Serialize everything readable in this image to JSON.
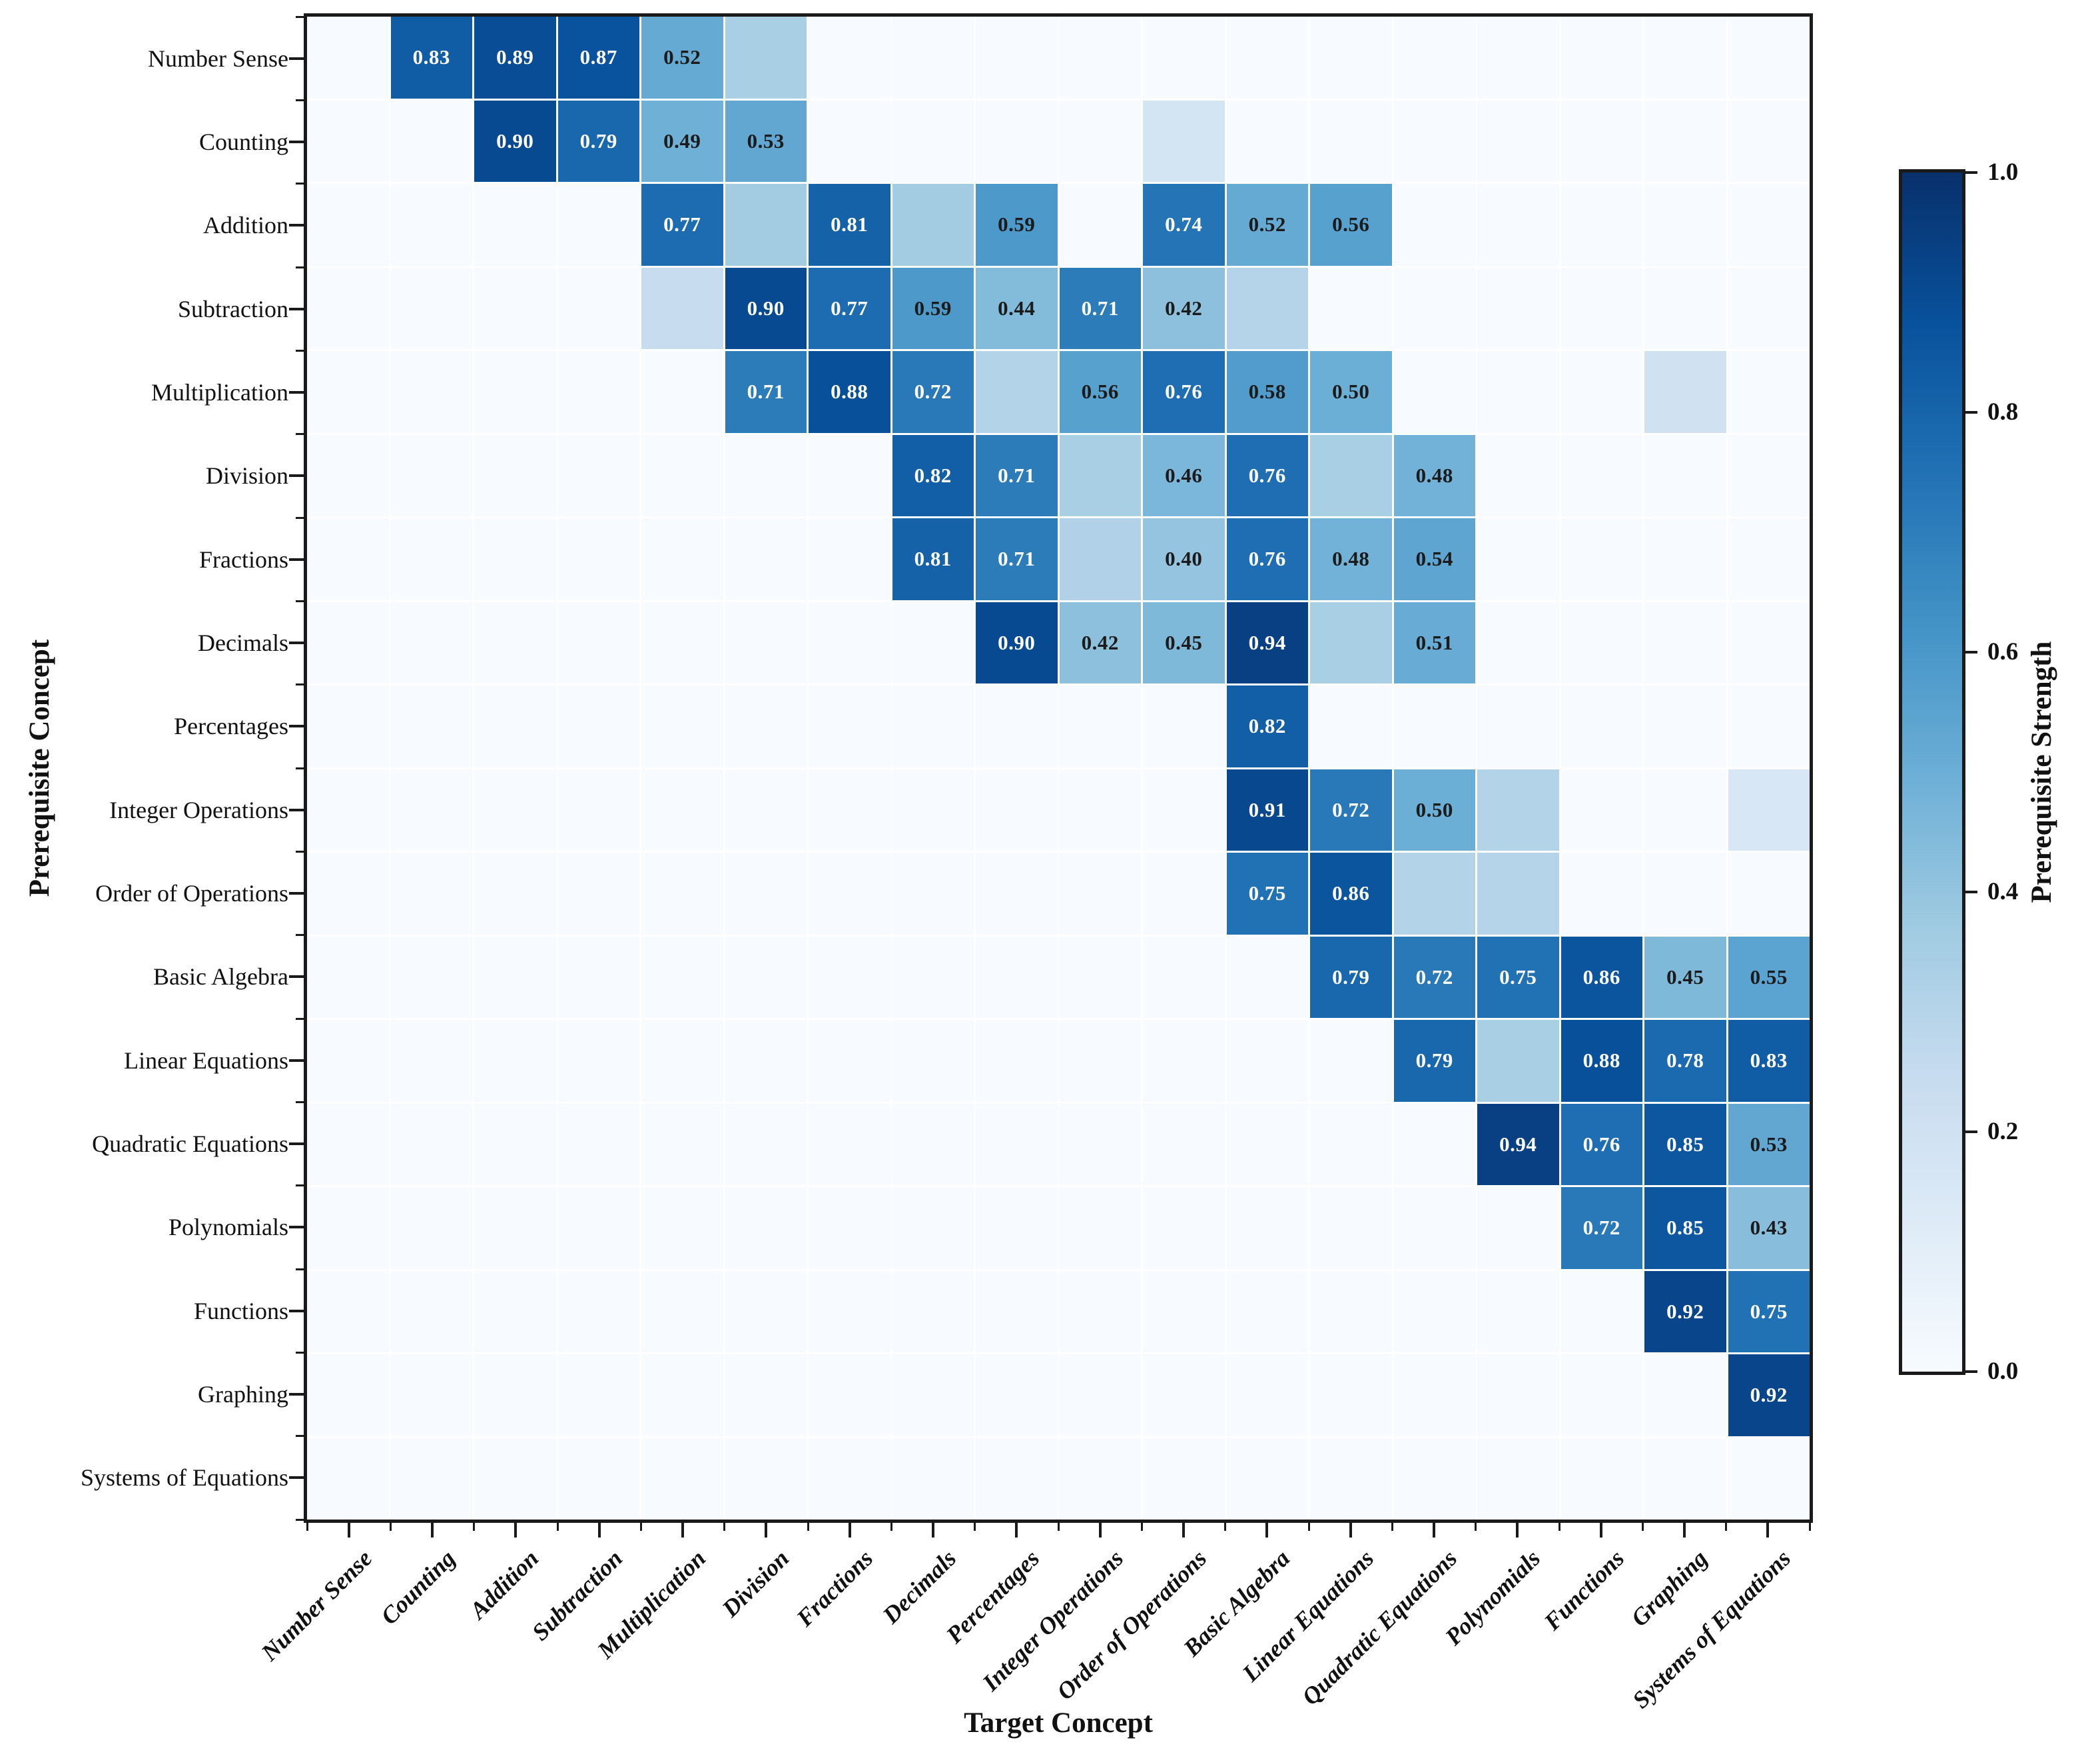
{
  "chart_data": {
    "type": "heatmap",
    "title": "",
    "xlabel": "Target Concept",
    "ylabel": "Prerequisite Concept",
    "categories": [
      "Number Sense",
      "Counting",
      "Addition",
      "Subtraction",
      "Multiplication",
      "Division",
      "Fractions",
      "Decimals",
      "Percentages",
      "Integer Operations",
      "Order of Operations",
      "Basic Algebra",
      "Linear Equations",
      "Quadratic Equations",
      "Polynomials",
      "Functions",
      "Graphing",
      "Systems of Equations"
    ],
    "matrix_note": "rows = prerequisite concept, cols = target concept, 0 = no relation; values below label_min are shown as shaded cells without numeric labels",
    "matrix": [
      [
        0,
        0.83,
        0.89,
        0.87,
        0.52,
        0.34,
        0,
        0,
        0,
        0,
        0,
        0,
        0,
        0,
        0,
        0,
        0,
        0
      ],
      [
        0,
        0,
        0.9,
        0.79,
        0.49,
        0.53,
        0,
        0,
        0,
        0,
        0.18,
        0,
        0,
        0,
        0,
        0,
        0,
        0
      ],
      [
        0,
        0,
        0,
        0,
        0.77,
        0.36,
        0.81,
        0.36,
        0.59,
        0,
        0.74,
        0.52,
        0.56,
        0,
        0,
        0,
        0,
        0
      ],
      [
        0,
        0,
        0,
        0,
        0.24,
        0.9,
        0.77,
        0.59,
        0.44,
        0.71,
        0.42,
        0.3,
        0,
        0,
        0,
        0,
        0,
        0
      ],
      [
        0,
        0,
        0,
        0,
        0,
        0.71,
        0.88,
        0.72,
        0.31,
        0.56,
        0.76,
        0.58,
        0.5,
        0,
        0,
        0,
        0.2,
        0
      ],
      [
        0,
        0,
        0,
        0,
        0,
        0,
        0,
        0.82,
        0.71,
        0.34,
        0.46,
        0.76,
        0.34,
        0.48,
        0,
        0,
        0,
        0
      ],
      [
        0,
        0,
        0,
        0,
        0,
        0,
        0,
        0.81,
        0.71,
        0.32,
        0.4,
        0.76,
        0.48,
        0.54,
        0,
        0,
        0,
        0
      ],
      [
        0,
        0,
        0,
        0,
        0,
        0,
        0,
        0,
        0.9,
        0.42,
        0.45,
        0.94,
        0.34,
        0.51,
        0,
        0,
        0,
        0
      ],
      [
        0,
        0,
        0,
        0,
        0,
        0,
        0,
        0,
        0,
        0,
        0,
        0.82,
        0,
        0,
        0,
        0,
        0,
        0
      ],
      [
        0,
        0,
        0,
        0,
        0,
        0,
        0,
        0,
        0,
        0,
        0,
        0.91,
        0.72,
        0.5,
        0.31,
        0,
        0,
        0.16
      ],
      [
        0,
        0,
        0,
        0,
        0,
        0,
        0,
        0,
        0,
        0,
        0,
        0.75,
        0.86,
        0.31,
        0.3,
        0,
        0,
        0
      ],
      [
        0,
        0,
        0,
        0,
        0,
        0,
        0,
        0,
        0,
        0,
        0,
        0,
        0.79,
        0.72,
        0.75,
        0.86,
        0.45,
        0.55
      ],
      [
        0,
        0,
        0,
        0,
        0,
        0,
        0,
        0,
        0,
        0,
        0,
        0,
        0,
        0.79,
        0.34,
        0.88,
        0.78,
        0.83
      ],
      [
        0,
        0,
        0,
        0,
        0,
        0,
        0,
        0,
        0,
        0,
        0,
        0,
        0,
        0,
        0.94,
        0.76,
        0.85,
        0.53
      ],
      [
        0,
        0,
        0,
        0,
        0,
        0,
        0,
        0,
        0,
        0,
        0,
        0,
        0,
        0,
        0,
        0.72,
        0.85,
        0.43
      ],
      [
        0,
        0,
        0,
        0,
        0,
        0,
        0,
        0,
        0,
        0,
        0,
        0,
        0,
        0,
        0,
        0,
        0.92,
        0.75
      ],
      [
        0,
        0,
        0,
        0,
        0,
        0,
        0,
        0,
        0,
        0,
        0,
        0,
        0,
        0,
        0,
        0,
        0,
        0.92
      ],
      [
        0,
        0,
        0,
        0,
        0,
        0,
        0,
        0,
        0,
        0,
        0,
        0,
        0,
        0,
        0,
        0,
        0,
        0
      ]
    ],
    "label_min": 0.4,
    "white_text_min": 0.65,
    "value_format_decimals": 2,
    "grid_on": true,
    "grid_line_color": "#ffffff",
    "colorbar": {
      "label": "Prerequisite Strength",
      "min": 0.0,
      "max": 1.0,
      "ticks": [
        "1.0",
        "0.8",
        "0.6",
        "0.4",
        "0.2",
        "0.0"
      ],
      "tick_values": [
        1.0,
        0.8,
        0.6,
        0.4,
        0.2,
        0.0
      ],
      "colormap": "Blues",
      "position": "right"
    },
    "colors": {
      "cmap_stops": [
        "#f7fbff",
        "#deebf7",
        "#c6dbef",
        "#9ecae1",
        "#6baed6",
        "#4292c6",
        "#2171b5",
        "#08519c",
        "#08306b"
      ],
      "spine": "#1a1a1a",
      "tick": "#1a1a1a",
      "text": "#111111",
      "annotation_light": "#ffffff",
      "annotation_dark": "#1b1b1b",
      "background": "#ffffff"
    },
    "legend_position": "none"
  }
}
